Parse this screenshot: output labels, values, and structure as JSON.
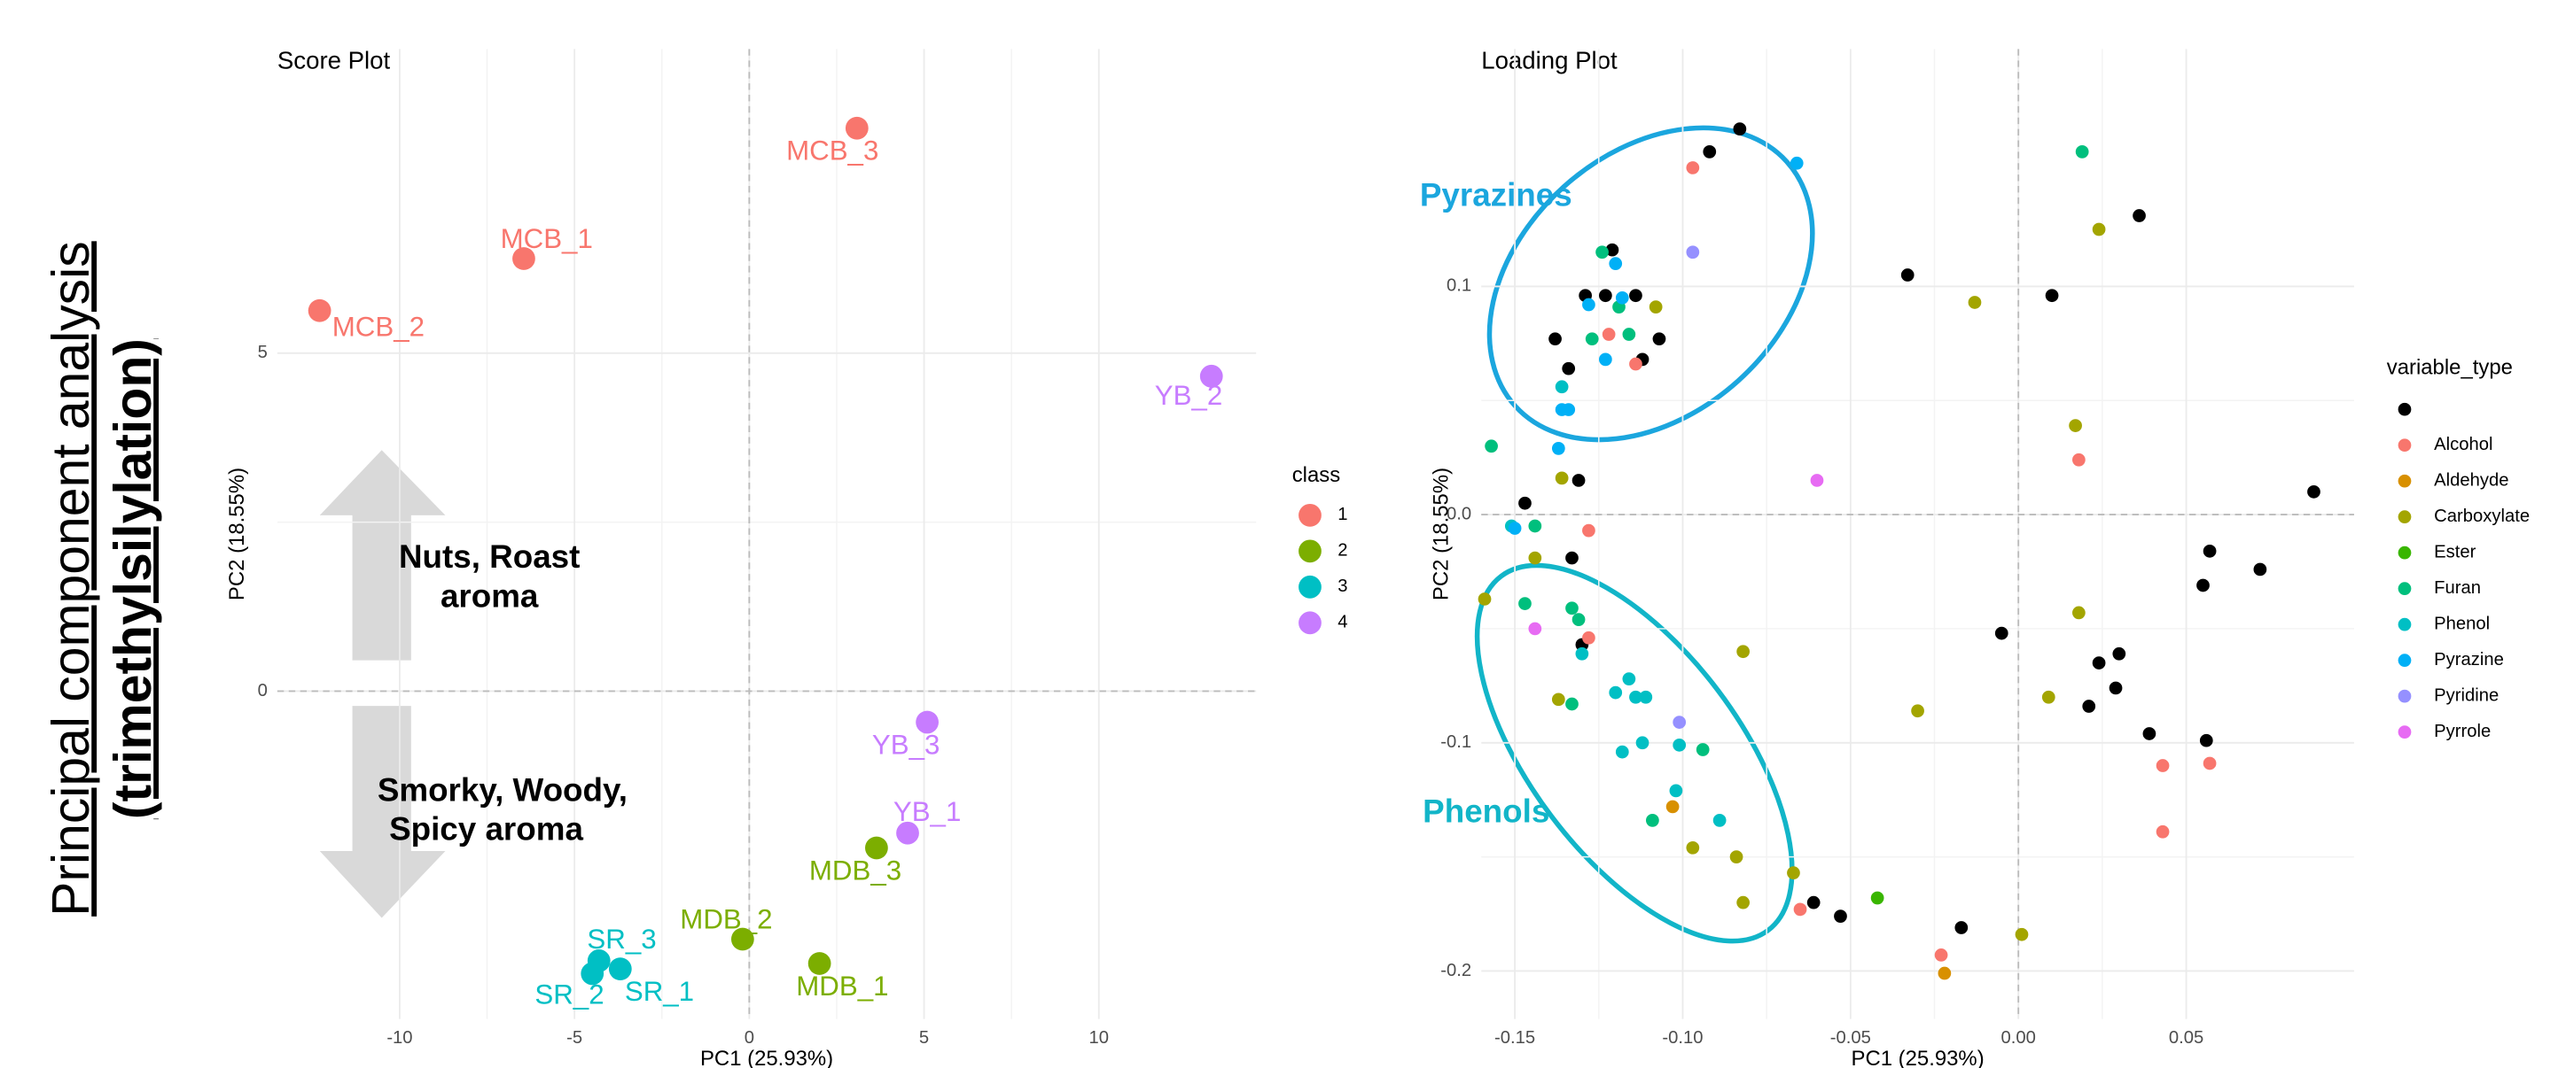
{
  "figure_label": [
    "Principal component analysis",
    "(trimethylsilylation)"
  ],
  "chart_data": [
    {
      "type": "scatter",
      "title": "Score Plot",
      "x_label": "PC1 (25.93%)",
      "y_label": "PC2 (18.55%)",
      "xlim": [
        -13.5,
        14.5
      ],
      "ylim": [
        -4.85,
        9.5
      ],
      "xticks": [
        -10,
        -5,
        0,
        5,
        10
      ],
      "yticks": [
        0,
        5
      ],
      "grid": true,
      "legend_title": "class",
      "legend": "right",
      "series": [
        {
          "name": "1",
          "color": "#F8766D",
          "x": [
            3.08,
            -6.45,
            -12.29
          ],
          "y": [
            8.33,
            6.4,
            5.63
          ],
          "labels": [
            "MCB_3",
            "MCB_1",
            "MCB_2"
          ]
        },
        {
          "name": "2",
          "color": "#7CAE00",
          "x": [
            3.64,
            -0.19,
            2.01
          ],
          "y": [
            -2.32,
            -3.67,
            -4.03
          ],
          "labels": [
            "MDB_3",
            "MDB_2",
            "MDB_1"
          ]
        },
        {
          "name": "3",
          "color": "#00BFC4",
          "x": [
            -4.3,
            -3.69,
            -4.49
          ],
          "y": [
            -3.99,
            -4.11,
            -4.18
          ],
          "labels": [
            "SR_3",
            "SR_1",
            "SR_2"
          ]
        },
        {
          "name": "4",
          "color": "#C77CFF",
          "x": [
            13.22,
            5.09,
            4.53
          ],
          "y": [
            4.66,
            -0.46,
            -2.1
          ],
          "labels": [
            "YB_2",
            "YB_3",
            "YB_1"
          ]
        }
      ],
      "annotations": [
        {
          "lines": [
            "Nuts, Roast",
            "aroma"
          ]
        },
        {
          "lines": [
            "Smorky, Woody,",
            "Spicy aroma"
          ]
        }
      ]
    },
    {
      "type": "scatter",
      "title": "Loading Plot",
      "x_label": "PC1 (25.93%)",
      "y_label": "PC2 (18.55%)",
      "xlim": [
        -0.16,
        0.1
      ],
      "ylim": [
        -0.221,
        0.204
      ],
      "xticks": [
        -0.15,
        {
          "value": -0.1,
          "label": "-0.10"
        },
        -0.05,
        {
          "value": 0,
          "label": "0.00"
        },
        0.05
      ],
      "yticks": [
        {
          "value": -0.2,
          "label": "-0.2"
        },
        {
          "value": -0.1,
          "label": "-0.1"
        },
        {
          "value": 0,
          "label": "0.0"
        },
        {
          "value": 0.1,
          "label": "0.1"
        }
      ],
      "grid": true,
      "legend_title": "variable_type",
      "legend": "right",
      "series": [
        {
          "name": null,
          "color": "#000000",
          "x": [
            -0.083,
            -0.092,
            -0.121,
            -0.129,
            -0.123,
            -0.114,
            -0.138,
            -0.107,
            -0.134,
            -0.112,
            -0.147,
            -0.131,
            -0.133,
            -0.13,
            -0.033,
            0.01,
            0.036,
            0.088,
            0.057,
            0.055,
            0.072,
            -0.005,
            0.03,
            0.024,
            0.029,
            0.021,
            0.039,
            0.056,
            -0.061,
            -0.053,
            -0.017
          ],
          "y": [
            0.169,
            0.159,
            0.116,
            0.096,
            0.096,
            0.096,
            0.077,
            0.077,
            0.064,
            0.068,
            0.005,
            0.015,
            -0.019,
            -0.057,
            0.105,
            0.096,
            0.131,
            0.01,
            -0.016,
            -0.031,
            -0.024,
            -0.052,
            -0.061,
            -0.065,
            -0.076,
            -0.084,
            -0.096,
            -0.099,
            -0.17,
            -0.176,
            -0.181
          ]
        },
        {
          "name": "Alcohol",
          "color": "#F8766D",
          "x": [
            -0.097,
            -0.122,
            -0.114,
            -0.128,
            -0.128,
            0.018,
            0.043,
            0.043,
            0.057,
            -0.065,
            -0.023
          ],
          "y": [
            0.152,
            0.079,
            0.066,
            -0.007,
            -0.054,
            0.024,
            -0.139,
            -0.11,
            -0.109,
            -0.173,
            -0.193
          ]
        },
        {
          "name": "Aldehyde",
          "color": "#D89000",
          "x": [
            -0.103,
            -0.022
          ],
          "y": [
            -0.128,
            -0.201
          ]
        },
        {
          "name": "Carboxylate",
          "color": "#A3A500",
          "x": [
            0.024,
            -0.013,
            -0.108,
            0.017,
            -0.136,
            -0.144,
            -0.159,
            -0.137,
            -0.082,
            0.018,
            -0.03,
            0.009,
            -0.097,
            -0.084,
            -0.082,
            -0.067,
            0.001
          ],
          "y": [
            0.125,
            0.093,
            0.091,
            0.039,
            0.016,
            -0.019,
            -0.037,
            -0.081,
            -0.06,
            -0.043,
            -0.086,
            -0.08,
            -0.146,
            -0.15,
            -0.17,
            -0.157,
            -0.184
          ]
        },
        {
          "name": "Ester",
          "color": "#39B600",
          "x": [
            -0.042
          ],
          "y": [
            -0.168
          ]
        },
        {
          "name": "Furan",
          "color": "#00BF7D",
          "x": [
            0.019,
            -0.124,
            -0.119,
            -0.116,
            -0.127,
            -0.157,
            -0.144,
            -0.133,
            -0.131,
            -0.147,
            -0.133,
            -0.094,
            -0.109
          ],
          "y": [
            0.159,
            0.115,
            0.091,
            0.079,
            0.077,
            0.03,
            -0.005,
            -0.041,
            -0.046,
            -0.039,
            -0.083,
            -0.103,
            -0.134
          ]
        },
        {
          "name": "Phenol",
          "color": "#00BFC4",
          "x": [
            -0.136,
            -0.13,
            -0.116,
            -0.12,
            -0.114,
            -0.111,
            -0.118,
            -0.112,
            -0.101,
            -0.102,
            -0.089,
            -0.151
          ],
          "y": [
            0.056,
            -0.061,
            -0.072,
            -0.078,
            -0.08,
            -0.08,
            -0.104,
            -0.1,
            -0.101,
            -0.121,
            -0.134,
            -0.005
          ]
        },
        {
          "name": "Pyrazine",
          "color": "#00B0F6",
          "x": [
            -0.066,
            -0.12,
            -0.128,
            -0.118,
            -0.123,
            -0.136,
            -0.134,
            -0.15,
            -0.137
          ],
          "y": [
            0.154,
            0.11,
            0.092,
            0.095,
            0.068,
            0.046,
            0.046,
            -0.006,
            0.029
          ]
        },
        {
          "name": "Pyridine",
          "color": "#9590FF",
          "x": [
            -0.097,
            -0.101
          ],
          "y": [
            0.115,
            -0.091
          ]
        },
        {
          "name": "Pyrrole",
          "color": "#E76BF3",
          "x": [
            -0.06,
            -0.144
          ],
          "y": [
            0.015,
            -0.05
          ]
        }
      ],
      "annotations": [
        {
          "text": "Pyrazines",
          "color": "#1BA6DE"
        },
        {
          "text": "Phenols",
          "color": "#12B5C8"
        }
      ]
    }
  ]
}
